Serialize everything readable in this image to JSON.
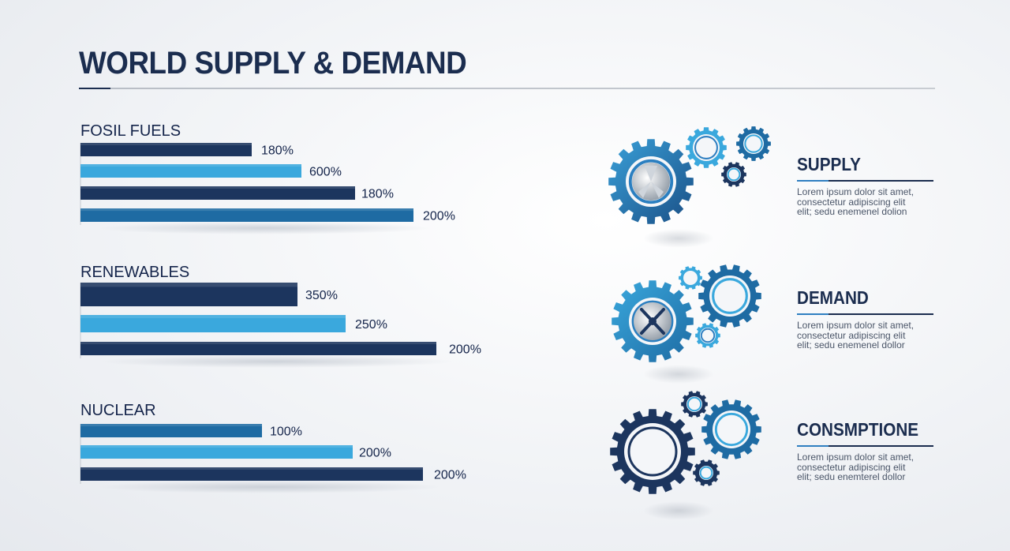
{
  "title": "WORLD SUPPLY & DEMAND",
  "chart_data": {
    "type": "bar",
    "orientation": "horizontal",
    "groups": [
      {
        "name": "FOSIL FUELS",
        "bars": [
          {
            "label": "180%",
            "value": 180
          },
          {
            "label": "600%",
            "value": 600
          },
          {
            "label": "180%",
            "value": 180
          },
          {
            "label": "200%",
            "value": 200
          }
        ]
      },
      {
        "name": "RENEWABLES",
        "bars": [
          {
            "label": "350%",
            "value": 350
          },
          {
            "label": "250%",
            "value": 250
          },
          {
            "label": "200%",
            "value": 200
          }
        ]
      },
      {
        "name": "NUCLEAR",
        "bars": [
          {
            "label": "100%",
            "value": 100
          },
          {
            "label": "200%",
            "value": 200
          },
          {
            "label": "200%",
            "value": 200
          }
        ]
      }
    ],
    "colors": {
      "dark": "#1c355e",
      "light": "#3aa8dd",
      "mid": "#1e6ba3"
    }
  },
  "panels": [
    {
      "heading": "SUPPLY",
      "text": "Lorem ipsum dolor sit amet,\nconsectetur adipiscing elit\nelit; sedu enemenel dolion",
      "icon": "gear-wheel-icon"
    },
    {
      "heading": "DEMAND",
      "text": "Lorem ipsum dolor sit amet,\nconsectetur adipiscing elit\nelit; sedu enemenel dollor",
      "icon": "gear-tools-icon"
    },
    {
      "heading": "CONSMPTIONE",
      "text": "Lorem ipsum dolor sit amet,\nconsectetur adipiscing elit\nelit; sedu enemterel dollor",
      "icon": "gear-ring-icon"
    }
  ]
}
